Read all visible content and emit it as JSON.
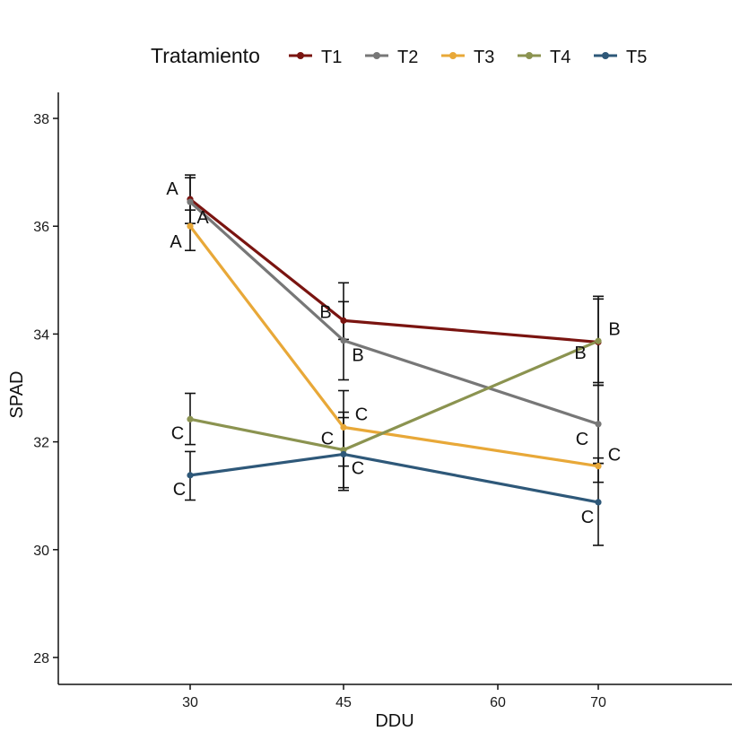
{
  "chart_data": {
    "type": "line",
    "title": "",
    "xlabel": "DDU",
    "ylabel": "SPAD",
    "x_ticks": [
      30,
      45,
      60,
      70
    ],
    "y_ticks": [
      28,
      30,
      32,
      34,
      36,
      38
    ],
    "x": [
      30,
      45,
      70
    ],
    "xlim": [
      17,
      83
    ],
    "ylim": [
      27.5,
      38.5
    ],
    "legend": {
      "title": "Tratamiento",
      "position": "top"
    },
    "series": [
      {
        "name": "T1",
        "color": "#7a1410",
        "values": [
          36.5,
          34.25,
          33.85
        ],
        "err_low": [
          36.05,
          33.9,
          33.05
        ],
        "err_high": [
          36.95,
          34.6,
          34.65
        ],
        "labels": [
          "A",
          "B",
          "B"
        ]
      },
      {
        "name": "T2",
        "color": "#777777",
        "values": [
          36.45,
          33.88,
          32.33
        ],
        "err_low": [
          36.05,
          33.15,
          31.6
        ],
        "err_high": [
          36.9,
          34.95,
          33.05
        ],
        "labels": [
          "A",
          "B",
          "C"
        ]
      },
      {
        "name": "T3",
        "color": "#e8a838",
        "values": [
          36.0,
          32.27,
          31.55
        ],
        "err_low": [
          35.55,
          31.55,
          31.25
        ],
        "err_high": [
          36.3,
          32.95,
          31.7
        ],
        "labels": [
          "A",
          "C",
          "C"
        ]
      },
      {
        "name": "T4",
        "color": "#8b9350",
        "values": [
          32.42,
          31.85,
          33.87
        ],
        "err_low": [
          31.95,
          31.15,
          33.1
        ],
        "err_high": [
          32.9,
          32.55,
          34.7
        ],
        "labels": [
          "C",
          "C",
          "B"
        ]
      },
      {
        "name": "T5",
        "color": "#2e5879",
        "values": [
          31.38,
          31.77,
          30.88
        ],
        "err_low": [
          30.92,
          31.1,
          30.08
        ],
        "err_high": [
          31.82,
          32.45,
          31.6
        ],
        "labels": [
          "C",
          "C",
          "C"
        ]
      }
    ]
  }
}
